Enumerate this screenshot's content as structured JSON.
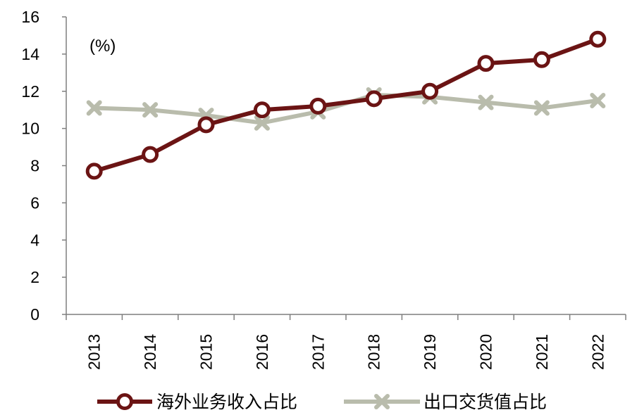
{
  "chart_data": {
    "type": "line",
    "unit_label": "(%)",
    "categories": [
      "2013",
      "2014",
      "2015",
      "2016",
      "2017",
      "2018",
      "2019",
      "2020",
      "2021",
      "2022"
    ],
    "ylim": [
      0,
      16
    ],
    "yticks": [
      0,
      2,
      4,
      6,
      8,
      10,
      12,
      14,
      16
    ],
    "grid": false,
    "legend_position": "bottom",
    "series": [
      {
        "name": "海外业务收入占比",
        "values": [
          7.7,
          8.6,
          10.2,
          11.0,
          11.2,
          11.6,
          12.0,
          13.5,
          13.7,
          14.8
        ],
        "color": "#6b1414",
        "marker": "circle"
      },
      {
        "name": "出口交货值占比",
        "values": [
          11.1,
          11.0,
          10.7,
          10.3,
          10.9,
          11.8,
          11.7,
          11.4,
          11.1,
          11.5
        ],
        "color": "#b9bcac",
        "marker": "x"
      }
    ]
  }
}
